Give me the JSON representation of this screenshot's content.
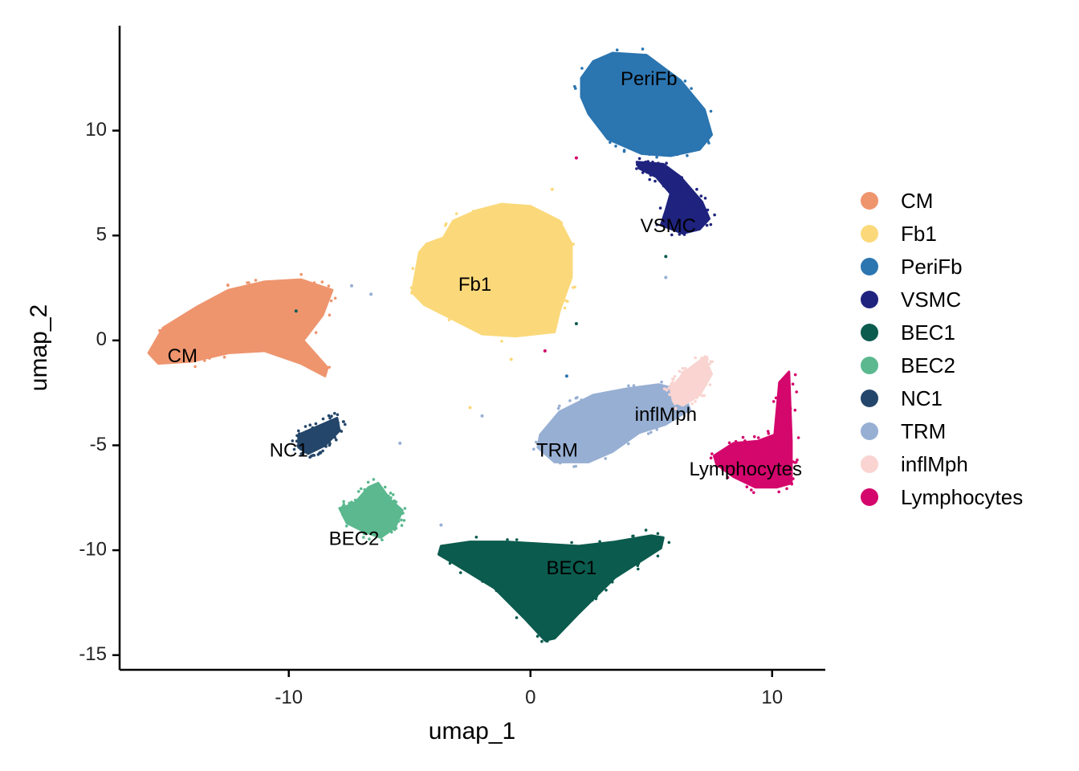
{
  "chart_data": {
    "type": "scatter",
    "title": "",
    "xlabel": "umap_1",
    "ylabel": "umap_2",
    "xlim": [
      -17,
      12.2
    ],
    "ylim": [
      -15.7,
      15
    ],
    "xticks": [
      -10,
      0,
      10
    ],
    "yticks": [
      10,
      5,
      0,
      -5,
      -10,
      -15
    ],
    "xtick_labels": [
      "-10",
      "0",
      "10"
    ],
    "ytick_labels": [
      "10",
      "5",
      "0",
      "-5",
      "-10",
      "-15"
    ],
    "grid": false,
    "legend_position": "right",
    "series": [
      {
        "name": "CM",
        "color": "#EE956E",
        "shape": [
          [
            -15.8,
            -0.6
          ],
          [
            -15.2,
            0.6
          ],
          [
            -13.8,
            1.6
          ],
          [
            -12.5,
            2.4
          ],
          [
            -11,
            2.8
          ],
          [
            -9.5,
            2.9
          ],
          [
            -8.2,
            2.4
          ],
          [
            -8.6,
            1.2
          ],
          [
            -9.4,
            0
          ],
          [
            -8.4,
            -1.3
          ],
          [
            -8.5,
            -1.7
          ],
          [
            -9.5,
            -1.1
          ],
          [
            -11,
            -0.5
          ],
          [
            -12.5,
            -0.6
          ],
          [
            -14,
            -1
          ],
          [
            -15.4,
            -1.1
          ]
        ],
        "label": {
          "text": "CM",
          "x": -14.4,
          "y": -0.8
        }
      },
      {
        "name": "Fb1",
        "color": "#FBD97A",
        "shape": [
          [
            -4.9,
            2.3
          ],
          [
            -4.6,
            4.2
          ],
          [
            -4.3,
            4.6
          ],
          [
            -3.6,
            4.9
          ],
          [
            -3.2,
            5.7
          ],
          [
            -2.2,
            6.2
          ],
          [
            -1.2,
            6.5
          ],
          [
            0,
            6.4
          ],
          [
            1.2,
            5.7
          ],
          [
            1.7,
            4.6
          ],
          [
            1.7,
            3
          ],
          [
            1.2,
            1.4
          ],
          [
            1,
            0.4
          ],
          [
            -0.6,
            0.2
          ],
          [
            -2,
            0.3
          ],
          [
            -3.2,
            1
          ],
          [
            -4.4,
            1.7
          ]
        ],
        "label": {
          "text": "Fb1",
          "x": -2.3,
          "y": 2.6
        }
      },
      {
        "name": "PeriFb",
        "color": "#2B75B0",
        "shape": [
          [
            2.1,
            12.5
          ],
          [
            2.6,
            13.3
          ],
          [
            3.4,
            13.7
          ],
          [
            4.8,
            13.6
          ],
          [
            6.2,
            12.4
          ],
          [
            7.2,
            11
          ],
          [
            7.5,
            9.8
          ],
          [
            7,
            9.1
          ],
          [
            5.8,
            8.8
          ],
          [
            4.6,
            8.9
          ],
          [
            3.2,
            9.6
          ],
          [
            2.4,
            10.8
          ],
          [
            2.1,
            11.6
          ]
        ],
        "label": {
          "text": "PeriFb",
          "x": 4.9,
          "y": 12.4
        }
      },
      {
        "name": "VSMC",
        "color": "#1F237E",
        "shape": [
          [
            4.4,
            8.5
          ],
          [
            5.5,
            8.4
          ],
          [
            6.2,
            7.8
          ],
          [
            7.1,
            6.6
          ],
          [
            7.4,
            5.8
          ],
          [
            7.0,
            5.3
          ],
          [
            6.3,
            5.1
          ],
          [
            5.4,
            5.5
          ],
          [
            5.6,
            6.2
          ],
          [
            5.8,
            7.0
          ],
          [
            5.2,
            7.8
          ],
          [
            4.5,
            8.2
          ]
        ],
        "label": {
          "text": "VSMC",
          "x": 5.7,
          "y": 5.4
        }
      },
      {
        "name": "BEC1",
        "color": "#0B5B4E",
        "shape": [
          [
            -3.7,
            -9.8
          ],
          [
            -2.5,
            -9.6
          ],
          [
            -1,
            -9.6
          ],
          [
            0.5,
            -9.7
          ],
          [
            2,
            -9.8
          ],
          [
            3.5,
            -9.6
          ],
          [
            5,
            -9.3
          ],
          [
            5.5,
            -9.4
          ],
          [
            5.4,
            -9.9
          ],
          [
            3.5,
            -11.3
          ],
          [
            2,
            -13
          ],
          [
            1,
            -14.2
          ],
          [
            0.6,
            -14.3
          ],
          [
            -0.2,
            -13.3
          ],
          [
            -1.5,
            -11.8
          ],
          [
            -3.2,
            -10.6
          ],
          [
            -3.8,
            -10.2
          ]
        ],
        "label": {
          "text": "BEC1",
          "x": 1.7,
          "y": -10.9
        }
      },
      {
        "name": "BEC2",
        "color": "#5BB88F",
        "shape": [
          [
            -7.9,
            -8
          ],
          [
            -7.3,
            -7.8
          ],
          [
            -6.7,
            -7
          ],
          [
            -6.3,
            -6.8
          ],
          [
            -5.8,
            -7.6
          ],
          [
            -5.3,
            -8.1
          ],
          [
            -5.6,
            -8.9
          ],
          [
            -6.2,
            -9.4
          ],
          [
            -6.9,
            -9.1
          ],
          [
            -7.6,
            -8.7
          ]
        ],
        "label": {
          "text": "BEC2",
          "x": -7.3,
          "y": -9.5
        }
      },
      {
        "name": "NC1",
        "color": "#24466A",
        "shape": [
          [
            -9.6,
            -4.5
          ],
          [
            -8.8,
            -4.1
          ],
          [
            -8.0,
            -3.7
          ],
          [
            -7.9,
            -4.3
          ],
          [
            -8.5,
            -5.0
          ],
          [
            -9.2,
            -5.4
          ],
          [
            -9.6,
            -5.1
          ]
        ],
        "label": {
          "text": "NC1",
          "x": -10.0,
          "y": -5.3
        }
      },
      {
        "name": "TRM",
        "color": "#97AFD3",
        "shape": [
          [
            0.4,
            -4.5
          ],
          [
            1.2,
            -3.4
          ],
          [
            2.6,
            -2.6
          ],
          [
            4,
            -2.3
          ],
          [
            5.3,
            -2.1
          ],
          [
            6.3,
            -2.4
          ],
          [
            6.6,
            -3.3
          ],
          [
            5.6,
            -4
          ],
          [
            4.5,
            -4.4
          ],
          [
            3.4,
            -5.3
          ],
          [
            2.4,
            -5.8
          ],
          [
            1,
            -5.8
          ],
          [
            0.3,
            -5.1
          ]
        ],
        "label": {
          "text": "TRM",
          "x": 1.1,
          "y": -5.3
        }
      },
      {
        "name": "inflMph",
        "color": "#F9D4D0",
        "shape": [
          [
            5.8,
            -2.3
          ],
          [
            6.4,
            -1.5
          ],
          [
            7.2,
            -0.8
          ],
          [
            7.5,
            -1.6
          ],
          [
            7.0,
            -2.6
          ],
          [
            6.3,
            -3.1
          ],
          [
            5.9,
            -2.9
          ]
        ],
        "label": {
          "text": "inflMph",
          "x": 5.6,
          "y": -3.6
        }
      },
      {
        "name": "Lymphocytes",
        "color": "#D4076C",
        "shape": [
          [
            7.6,
            -5.5
          ],
          [
            8.4,
            -4.9
          ],
          [
            9.4,
            -4.8
          ],
          [
            10.1,
            -4.5
          ],
          [
            10.3,
            -2
          ],
          [
            10.7,
            -1.5
          ],
          [
            10.8,
            -4.8
          ],
          [
            10.8,
            -6.8
          ],
          [
            10.2,
            -7
          ],
          [
            9.3,
            -7
          ],
          [
            8.4,
            -6.5
          ],
          [
            7.7,
            -5.9
          ]
        ],
        "label": {
          "text": "Lymphocytes",
          "x": 8.9,
          "y": -6.2
        }
      }
    ]
  }
}
